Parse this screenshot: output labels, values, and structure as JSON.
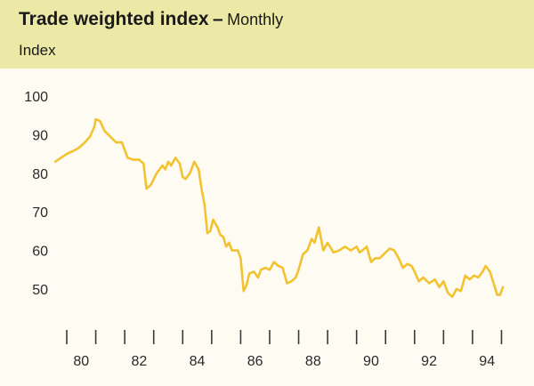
{
  "header": {
    "title": "Trade weighted index",
    "separator": "–",
    "subtitle": "Monthly",
    "unit": "Index"
  },
  "colors": {
    "header_band": "#ece8a6",
    "background": "#fdfbf2",
    "series_line": "#f2c230"
  },
  "chart_data": {
    "type": "line",
    "title": "Trade weighted index",
    "subtitle": "Monthly",
    "ylabel": "Index",
    "xlabel": "",
    "ylim": [
      40,
      100
    ],
    "xlim": [
      1979.6,
      1995.2
    ],
    "y_ticks": [
      50,
      60,
      70,
      80,
      90,
      100
    ],
    "y_tick_labels": [
      "50",
      "60",
      "70",
      "80",
      "90",
      "100"
    ],
    "x_ticks": [
      1980,
      1982,
      1984,
      1986,
      1988,
      1990,
      1992,
      1994
    ],
    "x_tick_labels": [
      "80",
      "82",
      "84",
      "86",
      "88",
      "90",
      "92",
      "94"
    ],
    "grid": false,
    "legend": "none",
    "series": [
      {
        "x": [
          1979.6,
          1979.8,
          1980.0,
          1980.2,
          1980.4,
          1980.6,
          1980.8,
          1980.95,
          1981.0,
          1981.15,
          1981.3,
          1981.5,
          1981.7,
          1981.9,
          1982.1,
          1982.3,
          1982.5,
          1982.65,
          1982.75,
          1982.9,
          1983.1,
          1983.3,
          1983.4,
          1983.5,
          1983.6,
          1983.75,
          1983.9,
          1984.0,
          1984.1,
          1984.25,
          1984.4,
          1984.55,
          1984.65,
          1984.75,
          1984.85,
          1984.95,
          1985.05,
          1985.2,
          1985.3,
          1985.4,
          1985.5,
          1985.6,
          1985.7,
          1985.8,
          1985.9,
          1986.0,
          1986.1,
          1986.2,
          1986.3,
          1986.45,
          1986.6,
          1986.7,
          1986.85,
          1987.0,
          1987.15,
          1987.3,
          1987.45,
          1987.6,
          1987.75,
          1987.9,
          1988.0,
          1988.15,
          1988.3,
          1988.45,
          1988.55,
          1988.7,
          1988.85,
          1989.0,
          1989.2,
          1989.4,
          1989.6,
          1989.8,
          1990.0,
          1990.1,
          1990.2,
          1990.35,
          1990.5,
          1990.65,
          1990.8,
          1991.0,
          1991.15,
          1991.3,
          1991.45,
          1991.6,
          1991.75,
          1991.9,
          1992.0,
          1992.15,
          1992.3,
          1992.5,
          1992.7,
          1992.85,
          1993.0,
          1993.15,
          1993.3,
          1993.45,
          1993.6,
          1993.75,
          1993.9,
          1994.05,
          1994.2,
          1994.35,
          1994.45,
          1994.6,
          1994.75,
          1994.85,
          1994.95,
          1995.05
        ],
        "y": [
          83,
          84,
          85,
          85.7,
          86.5,
          87.8,
          89.5,
          92,
          94,
          93.5,
          91,
          89.5,
          88,
          88,
          84,
          83.5,
          83.5,
          82.5,
          76,
          77,
          80,
          82,
          81,
          83,
          82,
          84,
          82.5,
          79,
          78.5,
          80,
          83,
          81,
          76,
          72,
          64.5,
          65,
          68,
          66,
          64,
          63.5,
          61,
          62,
          60,
          60,
          60,
          58,
          49.5,
          51,
          54,
          54.5,
          53,
          55,
          55.5,
          55,
          57,
          56,
          55.5,
          51.5,
          52,
          53,
          55,
          59,
          60,
          63,
          62,
          66,
          60,
          62,
          59.5,
          60,
          61,
          60,
          61,
          59.5,
          60,
          61,
          57,
          58,
          58,
          59.5,
          60.5,
          60,
          58,
          55.5,
          56.5,
          56,
          54.5,
          52,
          53,
          51.5,
          52.5,
          50.5,
          52,
          49,
          48,
          50,
          49.5,
          53.5,
          52.5,
          53.5,
          53,
          54.5,
          56,
          54.5,
          51,
          48.5,
          48.5,
          50.5
        ]
      }
    ]
  }
}
